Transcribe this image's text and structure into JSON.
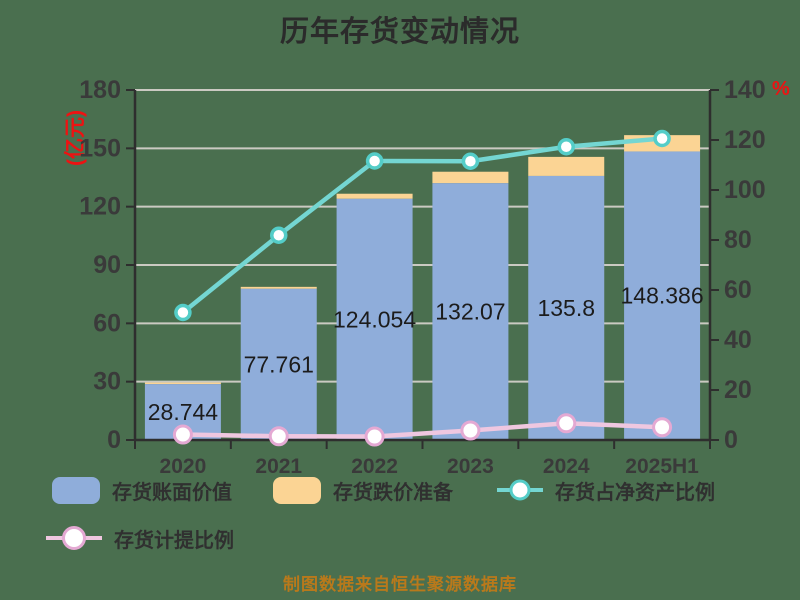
{
  "title": "历年存货变动情况",
  "left_axis": {
    "unit": "(亿元)",
    "ticks": [
      0,
      30,
      60,
      90,
      120,
      150,
      180
    ],
    "max": 180
  },
  "right_axis": {
    "unit": "%",
    "ticks": [
      0,
      20,
      40,
      60,
      80,
      100,
      120,
      140
    ],
    "max": 140
  },
  "footer": "制图数据来自恒生聚源数据库",
  "legend": {
    "items": [
      {
        "label": "存货账面价值"
      },
      {
        "label": "存货跌价准备"
      },
      {
        "label": "存货占净资产比例"
      },
      {
        "label": "存货计提比例"
      }
    ]
  },
  "colors": {
    "background": "#4a6f4f",
    "title_text": "#2b2b2b",
    "tick_text": "#3a3a3a",
    "value_text": "#1c1c1c",
    "axis_line": "#2e2e2e",
    "grid_line": "#cbcac2",
    "unit_red": "#ee1212",
    "bar_blue": "#8fadda",
    "bar_yellow": "#fbd494",
    "line_teal": "#74d6d2",
    "marker_teal": "#54cdc8",
    "line_pink": "#efc7e0",
    "marker_pink": "#e4a9d3",
    "marker_fill": "#ffffff",
    "footer_text": "#b9791b",
    "legend_text": "#303030"
  },
  "chart_data": {
    "type": "bar",
    "categories": [
      "2020",
      "2021",
      "2022",
      "2023",
      "2024",
      "2025H1"
    ],
    "series": [
      {
        "name": "存货账面价值",
        "type": "bar",
        "stack": true,
        "axis": "left",
        "values": [
          28.744,
          77.761,
          124.054,
          132.07,
          135.8,
          148.386
        ],
        "data_labels": [
          "28.744",
          "77.761",
          "124.054",
          "132.07",
          "135.8",
          "148.386"
        ]
      },
      {
        "name": "存货跌价准备",
        "type": "bar",
        "stack": true,
        "axis": "left",
        "values": [
          0.8,
          1.0,
          2.6,
          5.9,
          9.8,
          8.4
        ]
      },
      {
        "name": "存货占净资产比例",
        "type": "line",
        "axis": "right",
        "values": [
          51.0,
          81.9,
          111.6,
          111.5,
          117.3,
          120.6
        ]
      },
      {
        "name": "存货计提比例",
        "type": "line",
        "axis": "right",
        "values": [
          2.2,
          1.5,
          1.4,
          3.8,
          6.7,
          5.1
        ]
      }
    ],
    "title": "历年存货变动情况",
    "ylabel_left": "(亿元)",
    "ylabel_right": "%",
    "ylim_left": [
      0,
      180
    ],
    "ylim_right": [
      0,
      140
    ],
    "grid": true,
    "legend_position": "bottom"
  }
}
